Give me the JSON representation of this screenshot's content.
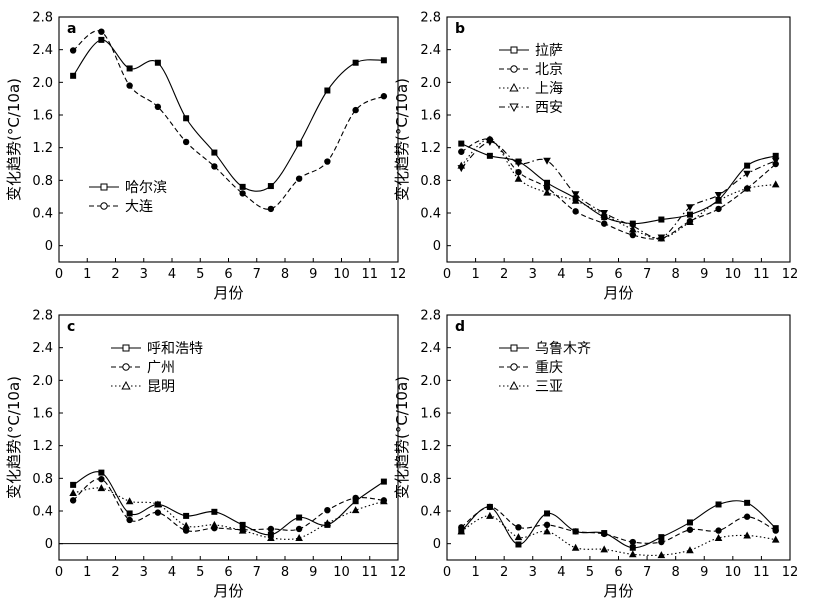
{
  "chart_data": [
    {
      "type": "line",
      "panel_label": "a",
      "xlabel": "月份",
      "ylabel": "变化趋势(°C/10a)",
      "xlim": [
        0,
        12
      ],
      "ylim": [
        -0.2,
        2.8
      ],
      "xticks": [
        0,
        1,
        2,
        3,
        4,
        5,
        6,
        7,
        8,
        9,
        10,
        11,
        12
      ],
      "yticks": [
        0,
        0.4,
        0.8,
        1.2,
        1.6,
        2.0,
        2.4,
        2.8
      ],
      "ytick_labels": [
        "0",
        "0.4",
        "0.8",
        "1.2",
        "1.6",
        "2.0",
        "2.4",
        "2.8"
      ],
      "zero_line": false,
      "legend_position": "bottom-left",
      "x": [
        0.5,
        1.5,
        2.5,
        3.5,
        4.5,
        5.5,
        6.5,
        7.5,
        8.5,
        9.5,
        10.5,
        11.5
      ],
      "series": [
        {
          "name": "哈尔滨",
          "marker": "square",
          "dash": "solid",
          "values": [
            2.08,
            2.52,
            2.17,
            2.24,
            1.56,
            1.14,
            0.72,
            0.73,
            1.25,
            1.9,
            2.24,
            2.27
          ]
        },
        {
          "name": "大连",
          "marker": "circle",
          "dash": "dashed",
          "values": [
            2.39,
            2.62,
            1.96,
            1.7,
            1.27,
            0.97,
            0.64,
            0.45,
            0.82,
            1.03,
            1.66,
            1.83
          ]
        }
      ]
    },
    {
      "type": "line",
      "panel_label": "b",
      "xlabel": "月份",
      "ylabel": "变化趋势(°C/10a)",
      "xlim": [
        0,
        12
      ],
      "ylim": [
        -0.2,
        2.8
      ],
      "xticks": [
        0,
        1,
        2,
        3,
        4,
        5,
        6,
        7,
        8,
        9,
        10,
        11,
        12
      ],
      "yticks": [
        0,
        0.4,
        0.8,
        1.2,
        1.6,
        2.0,
        2.4,
        2.8
      ],
      "ytick_labels": [
        "0",
        "0.4",
        "0.8",
        "1.2",
        "1.6",
        "2.0",
        "2.4",
        "2.8"
      ],
      "zero_line": false,
      "legend_position": "top-left",
      "x": [
        0.5,
        1.5,
        2.5,
        3.5,
        4.5,
        5.5,
        6.5,
        7.5,
        8.5,
        9.5,
        10.5,
        11.5
      ],
      "series": [
        {
          "name": "拉萨",
          "marker": "square",
          "dash": "solid",
          "values": [
            1.25,
            1.1,
            1.03,
            0.77,
            0.58,
            0.35,
            0.27,
            0.32,
            0.38,
            0.56,
            0.98,
            1.1
          ]
        },
        {
          "name": "北京",
          "marker": "circle",
          "dash": "dashed",
          "values": [
            1.15,
            1.3,
            0.9,
            0.71,
            0.42,
            0.27,
            0.13,
            0.09,
            0.3,
            0.45,
            0.7,
            1.0
          ]
        },
        {
          "name": "上海",
          "marker": "triangle-up",
          "dash": "dotted",
          "values": [
            0.98,
            1.3,
            0.82,
            0.65,
            0.55,
            0.38,
            0.2,
            0.09,
            0.29,
            0.55,
            0.7,
            0.75
          ]
        },
        {
          "name": "西安",
          "marker": "triangle-down",
          "dash": "dashdot",
          "values": [
            0.95,
            1.27,
            1.01,
            1.04,
            0.63,
            0.4,
            0.24,
            0.1,
            0.47,
            0.62,
            0.88,
            1.04
          ]
        }
      ]
    },
    {
      "type": "line",
      "panel_label": "c",
      "xlabel": "月份",
      "ylabel": "变化趋势(°C/10a)",
      "xlim": [
        0,
        12
      ],
      "ylim": [
        -0.2,
        2.8
      ],
      "xticks": [
        0,
        1,
        2,
        3,
        4,
        5,
        6,
        7,
        8,
        9,
        10,
        11,
        12
      ],
      "yticks": [
        0,
        0.4,
        0.8,
        1.2,
        1.6,
        2.0,
        2.4,
        2.8
      ],
      "ytick_labels": [
        "0",
        "0.4",
        "0.8",
        "1.2",
        "1.6",
        "2.0",
        "2.4",
        "2.8"
      ],
      "zero_line": true,
      "legend_position": "top-left",
      "x": [
        0.5,
        1.5,
        2.5,
        3.5,
        4.5,
        5.5,
        6.5,
        7.5,
        8.5,
        9.5,
        10.5,
        11.5
      ],
      "series": [
        {
          "name": "呼和浩特",
          "marker": "square",
          "dash": "solid",
          "values": [
            0.72,
            0.87,
            0.37,
            0.48,
            0.34,
            0.39,
            0.23,
            0.11,
            0.32,
            0.23,
            0.52,
            0.76
          ]
        },
        {
          "name": "广州",
          "marker": "circle",
          "dash": "dashed",
          "values": [
            0.53,
            0.79,
            0.29,
            0.38,
            0.16,
            0.19,
            0.17,
            0.18,
            0.18,
            0.41,
            0.56,
            0.53
          ]
        },
        {
          "name": "昆明",
          "marker": "triangle-up",
          "dash": "dotted",
          "values": [
            0.62,
            0.68,
            0.52,
            0.48,
            0.22,
            0.23,
            0.16,
            0.07,
            0.07,
            0.25,
            0.41,
            0.52
          ]
        }
      ]
    },
    {
      "type": "line",
      "panel_label": "d",
      "xlabel": "月份",
      "ylabel": "变化趋势(°C/10a)",
      "xlim": [
        0,
        12
      ],
      "ylim": [
        -0.2,
        2.8
      ],
      "xticks": [
        0,
        1,
        2,
        3,
        4,
        5,
        6,
        7,
        8,
        9,
        10,
        11,
        12
      ],
      "yticks": [
        0,
        0.4,
        0.8,
        1.2,
        1.6,
        2.0,
        2.4,
        2.8
      ],
      "ytick_labels": [
        "0",
        "0.4",
        "0.8",
        "1.2",
        "1.6",
        "2.0",
        "2.4",
        "2.8"
      ],
      "zero_line": false,
      "legend_position": "top-left",
      "x": [
        0.5,
        1.5,
        2.5,
        3.5,
        4.5,
        5.5,
        6.5,
        7.5,
        8.5,
        9.5,
        10.5,
        11.5
      ],
      "series": [
        {
          "name": "乌鲁木齐",
          "marker": "square",
          "dash": "solid",
          "values": [
            0.15,
            0.45,
            -0.01,
            0.37,
            0.15,
            0.13,
            -0.05,
            0.08,
            0.26,
            0.48,
            0.5,
            0.19
          ]
        },
        {
          "name": "重庆",
          "marker": "circle",
          "dash": "dashed",
          "values": [
            0.2,
            0.45,
            0.2,
            0.23,
            0.15,
            0.12,
            0.02,
            0.02,
            0.17,
            0.16,
            0.33,
            0.16
          ]
        },
        {
          "name": "三亚",
          "marker": "triangle-up",
          "dash": "dotted",
          "values": [
            0.15,
            0.34,
            0.08,
            0.15,
            -0.05,
            -0.07,
            -0.13,
            -0.14,
            -0.08,
            0.07,
            0.1,
            0.05
          ]
        }
      ]
    }
  ]
}
